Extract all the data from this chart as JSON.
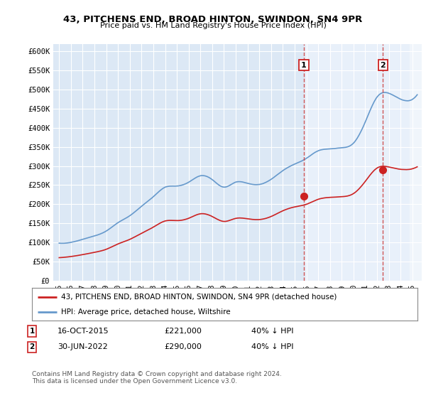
{
  "title": "43, PITCHENS END, BROAD HINTON, SWINDON, SN4 9PR",
  "subtitle": "Price paid vs. HM Land Registry's House Price Index (HPI)",
  "hpi_color": "#6699cc",
  "price_color": "#cc2222",
  "marker_color": "#cc2222",
  "plot_bg": "#dce8f5",
  "shade_color": "#e8f0fa",
  "ylim": [
    0,
    620000
  ],
  "yticks": [
    0,
    50000,
    100000,
    150000,
    200000,
    250000,
    300000,
    350000,
    400000,
    450000,
    500000,
    550000,
    600000
  ],
  "ytick_labels": [
    "£0",
    "£50K",
    "£100K",
    "£150K",
    "£200K",
    "£250K",
    "£300K",
    "£350K",
    "£400K",
    "£450K",
    "£500K",
    "£550K",
    "£600K"
  ],
  "legend_label_red": "43, PITCHENS END, BROAD HINTON, SWINDON, SN4 9PR (detached house)",
  "legend_label_blue": "HPI: Average price, detached house, Wiltshire",
  "annotation1_date": "16-OCT-2015",
  "annotation1_price": "£221,000",
  "annotation1_pct": "40% ↓ HPI",
  "annotation2_date": "30-JUN-2022",
  "annotation2_price": "£290,000",
  "annotation2_pct": "40% ↓ HPI",
  "footer": "Contains HM Land Registry data © Crown copyright and database right 2024.\nThis data is licensed under the Open Government Licence v3.0.",
  "sale1_x": 2015.79,
  "sale1_y": 221000,
  "sale2_x": 2022.5,
  "sale2_y": 290000,
  "vline1_x": 2015.79,
  "vline2_x": 2022.5,
  "xlim_left": 1994.5,
  "xlim_right": 2025.8
}
